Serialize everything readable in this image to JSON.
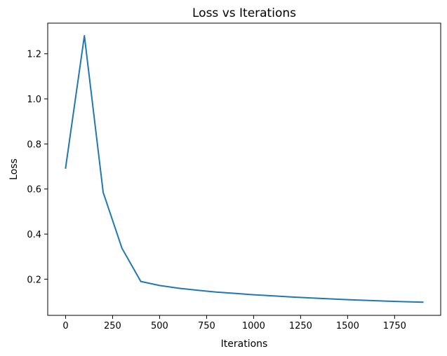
{
  "chart_data": {
    "type": "line",
    "title": "Loss vs Iterations",
    "xlabel": "Iterations",
    "ylabel": "Loss",
    "xlim": [
      -95,
      1995
    ],
    "ylim": [
      0.0395,
      1.336
    ],
    "x_ticks": [
      0,
      250,
      500,
      750,
      1000,
      1250,
      1500,
      1750
    ],
    "x_tick_labels": [
      "0",
      "250",
      "500",
      "750",
      "1000",
      "1250",
      "1500",
      "1750"
    ],
    "y_ticks": [
      0.2,
      0.4,
      0.6,
      0.8,
      1.0,
      1.2
    ],
    "y_tick_labels": [
      "0.2",
      "0.4",
      "0.6",
      "0.8",
      "1.0",
      "1.2"
    ],
    "grid": false,
    "legend": "none",
    "series": [
      {
        "color": "#1f77b4",
        "x": [
          0,
          100,
          200,
          300,
          400,
          500,
          600,
          700,
          800,
          900,
          1000,
          1100,
          1200,
          1300,
          1400,
          1500,
          1600,
          1700,
          1800,
          1900
        ],
        "y": [
          0.693,
          1.28,
          0.585,
          0.337,
          0.19,
          0.172,
          0.16,
          0.151,
          0.143,
          0.137,
          0.131,
          0.126,
          0.121,
          0.117,
          0.113,
          0.109,
          0.106,
          0.103,
          0.1,
          0.098
        ]
      }
    ]
  }
}
